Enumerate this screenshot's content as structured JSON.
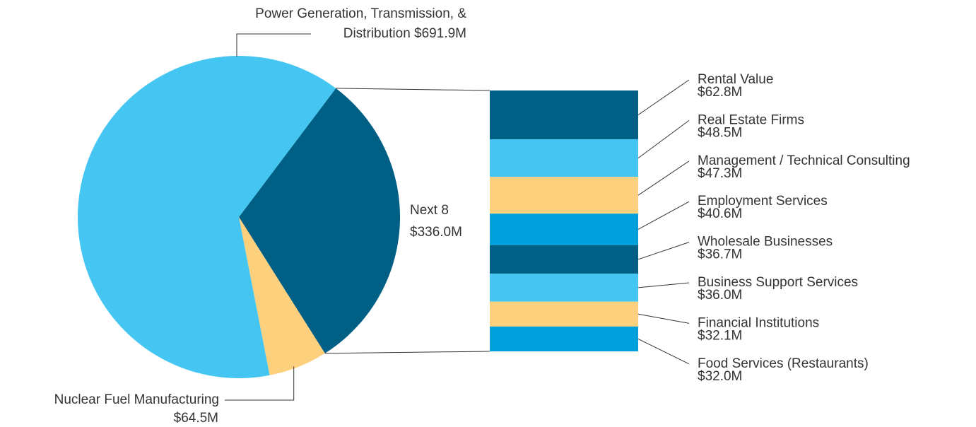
{
  "chart_data": [
    {
      "type": "pie",
      "categories": [
        "Power Generation, Transmission, & Distribution",
        "Nuclear Fuel Manufacturing",
        "Next 8"
      ],
      "values": [
        691.9,
        64.5,
        336.0
      ],
      "value_labels": [
        "$691.9M",
        "$64.5M",
        "$336.0M"
      ],
      "colors": [
        "#45c6f2",
        "#fdd07e",
        "#005f85"
      ]
    },
    {
      "type": "bar",
      "categories": [
        "Rental Value",
        "Real Estate Firms",
        "Management / Technical Consulting",
        "Employment Services",
        "Wholesale Businesses",
        "Business Support Services",
        "Financial Institutions",
        "Food Services (Restaurants)"
      ],
      "values": [
        62.8,
        48.5,
        47.3,
        40.6,
        36.7,
        36.0,
        32.1,
        32.0
      ],
      "value_labels": [
        "$62.8M",
        "$48.5M",
        "$47.3M",
        "$40.6M",
        "$36.7M",
        "$36.0M",
        "$32.1M",
        "$32.0M"
      ],
      "colors": [
        "#005f85",
        "#45c6f2",
        "#fdd07e",
        "#00a0dc",
        "#005f85",
        "#45c6f2",
        "#fdd07e",
        "#00a0dc"
      ]
    }
  ]
}
